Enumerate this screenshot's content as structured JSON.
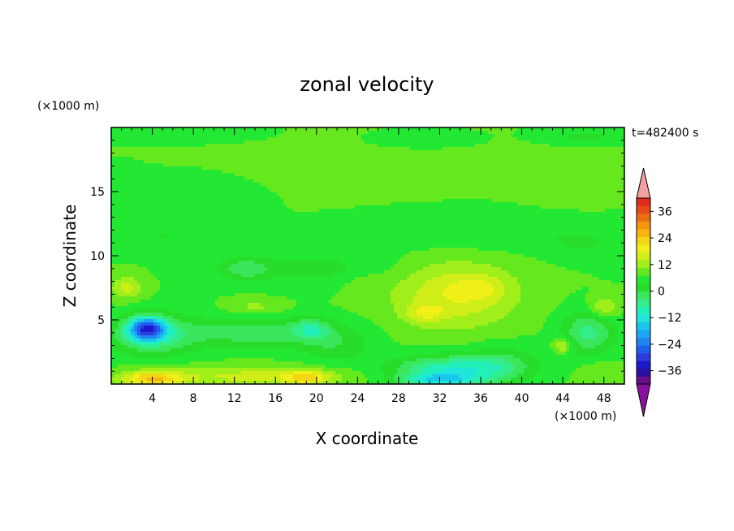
{
  "chart_data": {
    "type": "heatmap",
    "title": "zonal velocity",
    "xlabel": "X coordinate",
    "ylabel": "Z coordinate",
    "x_unit_label": "(×1000 m)",
    "y_unit_label": "(×1000 m)",
    "time_label": "t=482400 s",
    "xlim": [
      0,
      50
    ],
    "ylim": [
      0,
      20
    ],
    "x_ticks": [
      4,
      8,
      12,
      16,
      20,
      24,
      28,
      32,
      36,
      40,
      44,
      48
    ],
    "y_ticks": [
      5,
      10,
      15
    ],
    "colorbar": {
      "levels": [
        -42,
        -39,
        -36,
        -33,
        -30,
        -27,
        -24,
        -21,
        -18,
        -15,
        -12,
        -9,
        -6,
        -3,
        0,
        3,
        6,
        9,
        12,
        15,
        18,
        21,
        24,
        27,
        30,
        33,
        36,
        39,
        42
      ],
      "labels": [
        36,
        24,
        12,
        0,
        -12,
        -24,
        -36
      ],
      "label_texts": [
        "36",
        "24",
        "12",
        "0",
        "−12",
        "−24",
        "−36"
      ],
      "colors": [
        "#6a0f8c",
        "#2d0fa0",
        "#1a1acc",
        "#2a3ddd",
        "#1d5ff0",
        "#1f86ef",
        "#1aa8f2",
        "#1bc6ec",
        "#1ee6d8",
        "#22f0b8",
        "#33ec8a",
        "#3ae65c",
        "#28dd2a",
        "#22e833",
        "#66e81e",
        "#a0ee1a",
        "#cfee18",
        "#f0f018",
        "#f5d615",
        "#f6b50e",
        "#f3960d",
        "#ee6d12",
        "#ea4a18",
        "#e42a1e"
      ],
      "over_color": "#f2a0a0",
      "under_color": "#8a109e"
    },
    "field": {
      "background_value": 0,
      "features": [
        {
          "x": 3.5,
          "z": 4.3,
          "sx": 1.8,
          "sz": 0.9,
          "value": -26
        },
        {
          "x": 4.0,
          "z": 3.8,
          "sx": 4.2,
          "sz": 1.6,
          "value": -10
        },
        {
          "x": 14.0,
          "z": 4.0,
          "sx": 7.0,
          "sz": 1.2,
          "value": -8
        },
        {
          "x": 19.5,
          "z": 4.3,
          "sx": 1.8,
          "sz": 0.8,
          "value": -8
        },
        {
          "x": 22.0,
          "z": 3.0,
          "sx": 3.5,
          "sz": 1.5,
          "value": -5
        },
        {
          "x": 4.0,
          "z": 0.4,
          "sx": 3.0,
          "sz": 0.6,
          "value": 14
        },
        {
          "x": 14.0,
          "z": 0.6,
          "sx": 9.0,
          "sz": 0.8,
          "value": 7
        },
        {
          "x": 19.0,
          "z": 0.5,
          "sx": 2.2,
          "sz": 0.5,
          "value": 10
        },
        {
          "x": 1.5,
          "z": 7.5,
          "sx": 1.5,
          "sz": 0.9,
          "value": 7
        },
        {
          "x": 14.0,
          "z": 6.0,
          "sx": 2.5,
          "sz": 0.6,
          "value": 4
        },
        {
          "x": 33.5,
          "z": 7.0,
          "sx": 6.0,
          "sz": 2.6,
          "value": 9
        },
        {
          "x": 36.0,
          "z": 7.5,
          "sx": 2.5,
          "sz": 0.9,
          "value": 4
        },
        {
          "x": 30.5,
          "z": 5.5,
          "sx": 1.8,
          "sz": 0.7,
          "value": 6
        },
        {
          "x": 33.0,
          "z": 1.2,
          "sx": 5.5,
          "sz": 1.0,
          "value": -14
        },
        {
          "x": 32.0,
          "z": 0.3,
          "sx": 4.0,
          "sz": 0.5,
          "value": -14
        },
        {
          "x": 38.0,
          "z": 1.5,
          "sx": 3.5,
          "sz": 1.5,
          "value": -6
        },
        {
          "x": 46.5,
          "z": 4.0,
          "sx": 2.6,
          "sz": 1.7,
          "value": -10
        },
        {
          "x": 44.0,
          "z": 3.0,
          "sx": 0.9,
          "sz": 0.6,
          "value": 8
        },
        {
          "x": 48.0,
          "z": 6.0,
          "sx": 1.4,
          "sz": 0.8,
          "value": 7
        },
        {
          "x": 47.5,
          "z": 0.8,
          "sx": 2.0,
          "sz": 1.0,
          "value": 3
        },
        {
          "x": 5.0,
          "z": 11.5,
          "sx": 5.0,
          "sz": 1.2,
          "value": -3
        },
        {
          "x": 35.0,
          "z": 12.0,
          "sx": 10.0,
          "sz": 1.6,
          "value": -3
        },
        {
          "x": 46.0,
          "z": 11.0,
          "sx": 4.0,
          "sz": 1.2,
          "value": -3
        },
        {
          "x": 20.0,
          "z": 9.0,
          "sx": 8.0,
          "sz": 1.3,
          "value": -4
        },
        {
          "x": 13.0,
          "z": 9.0,
          "sx": 2.5,
          "sz": 0.8,
          "value": -7
        },
        {
          "x": 24.5,
          "z": 8.0,
          "sx": 2.0,
          "sz": 1.0,
          "value": 2
        },
        {
          "x": 25.0,
          "z": 17.0,
          "sx": 14.0,
          "sz": 2.2,
          "value": 2
        },
        {
          "x": 44.0,
          "z": 16.0,
          "sx": 5.0,
          "sz": 2.0,
          "value": 2
        },
        {
          "x": 8.0,
          "z": 19.5,
          "sx": 6.0,
          "sz": 0.6,
          "value": -3
        },
        {
          "x": 46.0,
          "z": 19.3,
          "sx": 4.0,
          "sz": 0.6,
          "value": -4
        },
        {
          "x": 30.0,
          "z": 19.0,
          "sx": 5.0,
          "sz": 0.7,
          "value": -3
        },
        {
          "x": 8.0,
          "z": 15.0,
          "sx": 6.0,
          "sz": 1.4,
          "value": -3
        },
        {
          "x": 1.5,
          "z": 15.0,
          "sx": 2.0,
          "sz": 1.5,
          "value": -2
        }
      ]
    }
  }
}
